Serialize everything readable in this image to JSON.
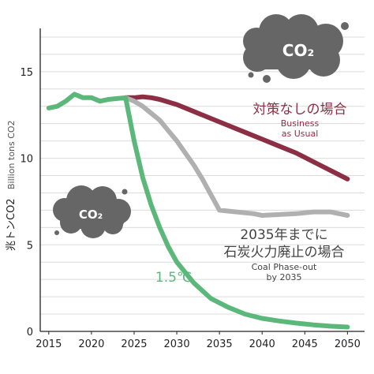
{
  "chart_data": {
    "type": "line",
    "title": "",
    "xlabel": "",
    "ylabel": "兆トンCO2",
    "ylabel_secondary": "Billion tons CO2",
    "xlim": [
      2014,
      2052
    ],
    "ylim": [
      0,
      17.5
    ],
    "xticks": [
      2015,
      2020,
      2025,
      2030,
      2035,
      2040,
      2045,
      2050
    ],
    "yticks": [
      0,
      5,
      10,
      15
    ],
    "grid": true,
    "series": [
      {
        "name": "対策なしの場合 Business as Usual",
        "color": "#8c2f45",
        "x": [
          2024,
          2025,
          2026,
          2027,
          2028,
          2029,
          2030,
          2032,
          2034,
          2036,
          2038,
          2040,
          2042,
          2044,
          2046,
          2048,
          2050
        ],
        "y": [
          13.5,
          13.5,
          13.55,
          13.5,
          13.4,
          13.25,
          13.1,
          12.7,
          12.3,
          11.9,
          11.5,
          11.1,
          10.7,
          10.3,
          9.8,
          9.3,
          8.8
        ]
      },
      {
        "name": "2035年までに石炭火力廃止の場合 Coal Phase-out by 2035",
        "color": "#b0b0b0",
        "x": [
          2024,
          2025,
          2026,
          2027,
          2028,
          2029,
          2030,
          2031,
          2032,
          2033,
          2034,
          2035,
          2037,
          2039,
          2040,
          2042,
          2044,
          2046,
          2048,
          2050
        ],
        "y": [
          13.5,
          13.3,
          13.0,
          12.6,
          12.2,
          11.6,
          11.0,
          10.3,
          9.6,
          8.8,
          7.9,
          7.0,
          6.9,
          6.8,
          6.7,
          6.75,
          6.8,
          6.9,
          6.9,
          6.7
        ]
      },
      {
        "name": "1.5℃",
        "color": "#5cb87a",
        "x": [
          2015,
          2016,
          2017,
          2018,
          2019,
          2020,
          2021,
          2022,
          2023,
          2024,
          2025,
          2026,
          2027,
          2028,
          2029,
          2030,
          2032,
          2034,
          2036,
          2038,
          2040,
          2042,
          2044,
          2046,
          2048,
          2050
        ],
        "y": [
          12.9,
          13.0,
          13.3,
          13.7,
          13.5,
          13.5,
          13.3,
          13.4,
          13.45,
          13.5,
          11.0,
          8.9,
          7.3,
          6.0,
          4.9,
          4.0,
          2.8,
          1.9,
          1.4,
          1.0,
          0.75,
          0.6,
          0.48,
          0.38,
          0.3,
          0.25
        ]
      }
    ],
    "annotations": {
      "bau_ja": "対策なしの場合",
      "bau_en_1": "Business",
      "bau_en_2": "as Usual",
      "coal_ja_1": "2035年までに",
      "coal_ja_2": "石炭火力廃止の場合",
      "coal_en_1": "Coal Phase-out",
      "coal_en_2": "by 2035",
      "pathway": "1.5℃",
      "cloud_text": "CO₂"
    }
  }
}
